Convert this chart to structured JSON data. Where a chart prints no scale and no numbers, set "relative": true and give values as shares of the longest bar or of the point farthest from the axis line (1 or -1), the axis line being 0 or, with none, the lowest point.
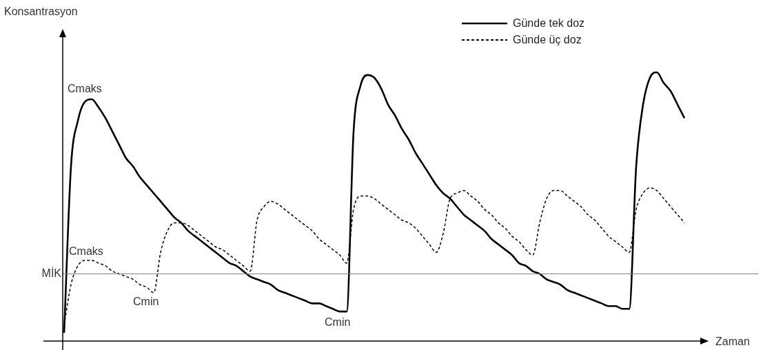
{
  "chart_data": {
    "type": "line",
    "relative": true,
    "xlabel": "Zaman",
    "ylabel": "Konsantrasyon",
    "legend": "top right",
    "categories": [
      null,
      null,
      null,
      null,
      null,
      null,
      null,
      null,
      null,
      null,
      null,
      null,
      null,
      null,
      null,
      null,
      null,
      null,
      null,
      null,
      null,
      null,
      null,
      null,
      null,
      null,
      null,
      null,
      null,
      null,
      null,
      null,
      null,
      null,
      null,
      null,
      null,
      null,
      null,
      null,
      null,
      null,
      null,
      null,
      null,
      null,
      null,
      null,
      null,
      null,
      null,
      null,
      null,
      null,
      null,
      null,
      null,
      null,
      null,
      null,
      null,
      null,
      null,
      null,
      null,
      null,
      null,
      null,
      null,
      null,
      null,
      null,
      null,
      null,
      null,
      null,
      null,
      null,
      null,
      null,
      null,
      null,
      null,
      null,
      null,
      null,
      null,
      null,
      null,
      null,
      null
    ],
    "series": [
      {
        "name": "Günde tek doz",
        "color": "#000000",
        "line_style": "solid",
        "values": [
          0.03,
          0.65,
          0.82,
          0.89,
          0.9,
          0.87,
          0.83,
          0.78,
          0.73,
          0.68,
          0.65,
          0.61,
          0.58,
          0.55,
          0.52,
          0.49,
          0.46,
          0.44,
          0.41,
          0.39,
          0.37,
          0.35,
          0.33,
          0.31,
          0.29,
          0.28,
          0.26,
          0.24,
          0.23,
          0.22,
          0.21,
          0.19,
          0.18,
          0.17,
          0.16,
          0.15,
          0.14,
          0.14,
          0.13,
          0.12,
          0.11,
          0.11,
          0.78,
          0.95,
          0.99,
          0.98,
          0.94,
          0.88,
          0.84,
          0.79,
          0.75,
          0.7,
          0.66,
          0.62,
          0.58,
          0.55,
          0.53,
          0.5,
          0.47,
          0.45,
          0.43,
          0.41,
          0.38,
          0.36,
          0.34,
          0.32,
          0.29,
          0.28,
          0.26,
          0.25,
          0.23,
          0.22,
          0.21,
          0.19,
          0.18,
          0.17,
          0.16,
          0.15,
          0.14,
          0.13,
          0.13,
          0.12,
          0.12,
          0.65,
          0.88,
          0.98,
          1,
          0.96,
          0.93,
          0.88,
          0.83
        ]
      },
      {
        "name": "Günde üç doz",
        "color": "#000000",
        "line_style": "dashed",
        "values": [
          0.06,
          0.21,
          0.28,
          0.3,
          0.3,
          0.29,
          0.28,
          0.26,
          0.25,
          0.24,
          0.23,
          0.21,
          0.2,
          0.18,
          0.33,
          0.41,
          0.44,
          0.44,
          0.43,
          0.41,
          0.39,
          0.37,
          0.35,
          0.34,
          0.32,
          0.3,
          0.28,
          0.26,
          0.45,
          0.5,
          0.52,
          0.51,
          0.49,
          0.47,
          0.45,
          0.43,
          0.41,
          0.38,
          0.36,
          0.34,
          0.32,
          0.29,
          0.49,
          0.54,
          0.54,
          0.53,
          0.51,
          0.49,
          0.47,
          0.45,
          0.44,
          0.42,
          0.39,
          0.36,
          0.33,
          0.4,
          0.53,
          0.55,
          0.56,
          0.54,
          0.52,
          0.49,
          0.47,
          0.44,
          0.42,
          0.39,
          0.37,
          0.34,
          0.32,
          0.44,
          0.53,
          0.56,
          0.56,
          0.54,
          0.52,
          0.5,
          0.47,
          0.45,
          0.42,
          0.39,
          0.37,
          0.35,
          0.33,
          0.49,
          0.55,
          0.57,
          0.56,
          0.53,
          0.5,
          0.47,
          0.44
        ]
      }
    ],
    "ref_lines": [
      {
        "axis": "y",
        "value": 0.25,
        "label": "MİK",
        "color": "#808080"
      }
    ],
    "annotations": [
      "Cmaks",
      "Cmaks",
      "Cmin",
      "Cmin"
    ]
  }
}
